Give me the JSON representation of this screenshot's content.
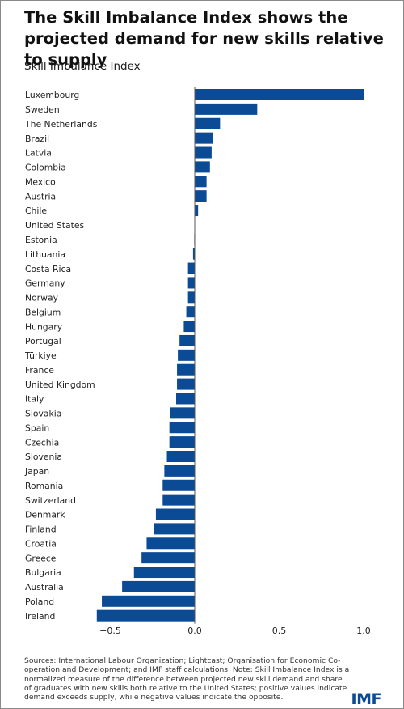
{
  "title": "The Skill Imbalance Index shows the projected demand for new skills relative to supply",
  "footer": {
    "note": "Sources: International Labour Organization; Lightcast; Organisation for Economic Co-operation and Development; and IMF staff calculations. Note: Skill Imbalance Index is a normalized measure of the difference between projected new skill demand and share of graduates with new skills both relative to the United States; positive values indicate demand exceeds supply, while negative values indicate the opposite.",
    "logo": "IMF"
  },
  "colors": {
    "bar": "#0b4a94",
    "logo": "#0b4a94",
    "axis": "#555555"
  },
  "chart_data": {
    "type": "bar",
    "orientation": "horizontal",
    "title": "Skill Imbalance Index",
    "xlabel": "",
    "ylabel": "",
    "xlim": [
      -0.58,
      1.0
    ],
    "x_ticks": [
      -0.5,
      0.0,
      0.5,
      1.0
    ],
    "x_tick_labels": [
      "−0.5",
      "0.0",
      "0.5",
      "1.0"
    ],
    "grid": false,
    "legend": "none",
    "categories": [
      "Luxembourg",
      "Sweden",
      "The Netherlands",
      "Brazil",
      "Latvia",
      "Colombia",
      "Mexico",
      "Austria",
      "Chile",
      "United States",
      "Estonia",
      "Lithuania",
      "Costa Rica",
      "Germany",
      "Norway",
      "Belgium",
      "Hungary",
      "Portugal",
      "Türkiye",
      "France",
      "United Kingdom",
      "Italy",
      "Slovakia",
      "Spain",
      "Czechia",
      "Slovenia",
      "Japan",
      "Romania",
      "Switzerland",
      "Denmark",
      "Finland",
      "Croatia",
      "Greece",
      "Bulgaria",
      "Australia",
      "Poland",
      "Ireland"
    ],
    "values": [
      1.0,
      0.37,
      0.15,
      0.11,
      0.1,
      0.09,
      0.07,
      0.07,
      0.02,
      0.0,
      -0.003,
      -0.01,
      -0.04,
      -0.04,
      -0.04,
      -0.05,
      -0.065,
      -0.09,
      -0.1,
      -0.105,
      -0.105,
      -0.11,
      -0.145,
      -0.15,
      -0.15,
      -0.165,
      -0.18,
      -0.19,
      -0.19,
      -0.23,
      -0.24,
      -0.285,
      -0.315,
      -0.36,
      -0.43,
      -0.55,
      -0.58
    ]
  }
}
